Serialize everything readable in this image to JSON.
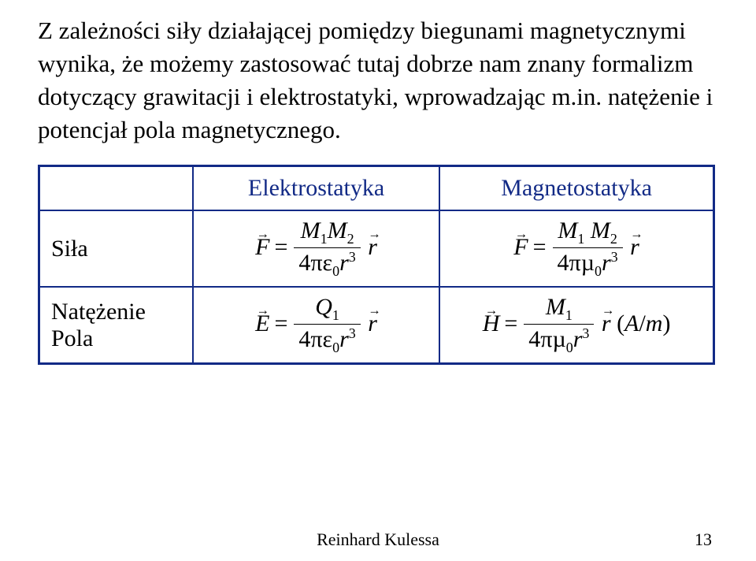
{
  "intro": "Z zależności siły działającej pomiędzy biegunami magnetycznymi wynika, że możemy zastosować tutaj dobrze nam znany formalizm dotyczący grawitacji i elektrostatyki, wprowadzając m.in. natężenie i potencjał pola magnetycznego.",
  "table": {
    "border_color": "#122a86",
    "header_color": "#122a86",
    "columns": {
      "blank": "",
      "col2": "Elektrostatyka",
      "col3": "Magnetostatyka"
    },
    "rows": {
      "force": {
        "label": "Siła",
        "electro": {
          "lhs": "F",
          "num_l": "M",
          "num_l_sub": "1",
          "num_r": "M",
          "num_r_sub": "2",
          "den_c": "4πε",
          "den_sub": "0",
          "den_var": "r",
          "den_exp": "3",
          "rhs": "r"
        },
        "magneto": {
          "lhs": "F",
          "num_l": "M",
          "num_l_sub": "1",
          "num_r": "M",
          "num_r_sub": "2",
          "den_c": "4πµ",
          "den_sub": "0",
          "den_var": "r",
          "den_exp": "3",
          "rhs": "r"
        }
      },
      "intensity": {
        "label_l1": "Natężenie",
        "label_l2": "Pola",
        "electro": {
          "lhs": "E",
          "num": "Q",
          "num_sub": "1",
          "den_c": "4πε",
          "den_sub": "0",
          "den_var": "r",
          "den_exp": "3",
          "rhs": "r"
        },
        "magneto": {
          "lhs": "H",
          "num": "M",
          "num_sub": "1",
          "den_c": "4πµ",
          "den_sub": "0",
          "den_var": "r",
          "den_exp": "3",
          "rhs": "r",
          "unit": "(A/m)"
        }
      }
    }
  },
  "footer": {
    "author": "Reinhard Kulessa",
    "page": "13"
  },
  "colors": {
    "text": "#000000",
    "accent": "#122a86",
    "background": "#ffffff"
  },
  "fontsizes": {
    "intro": 31,
    "table": 30,
    "footer": 22
  }
}
